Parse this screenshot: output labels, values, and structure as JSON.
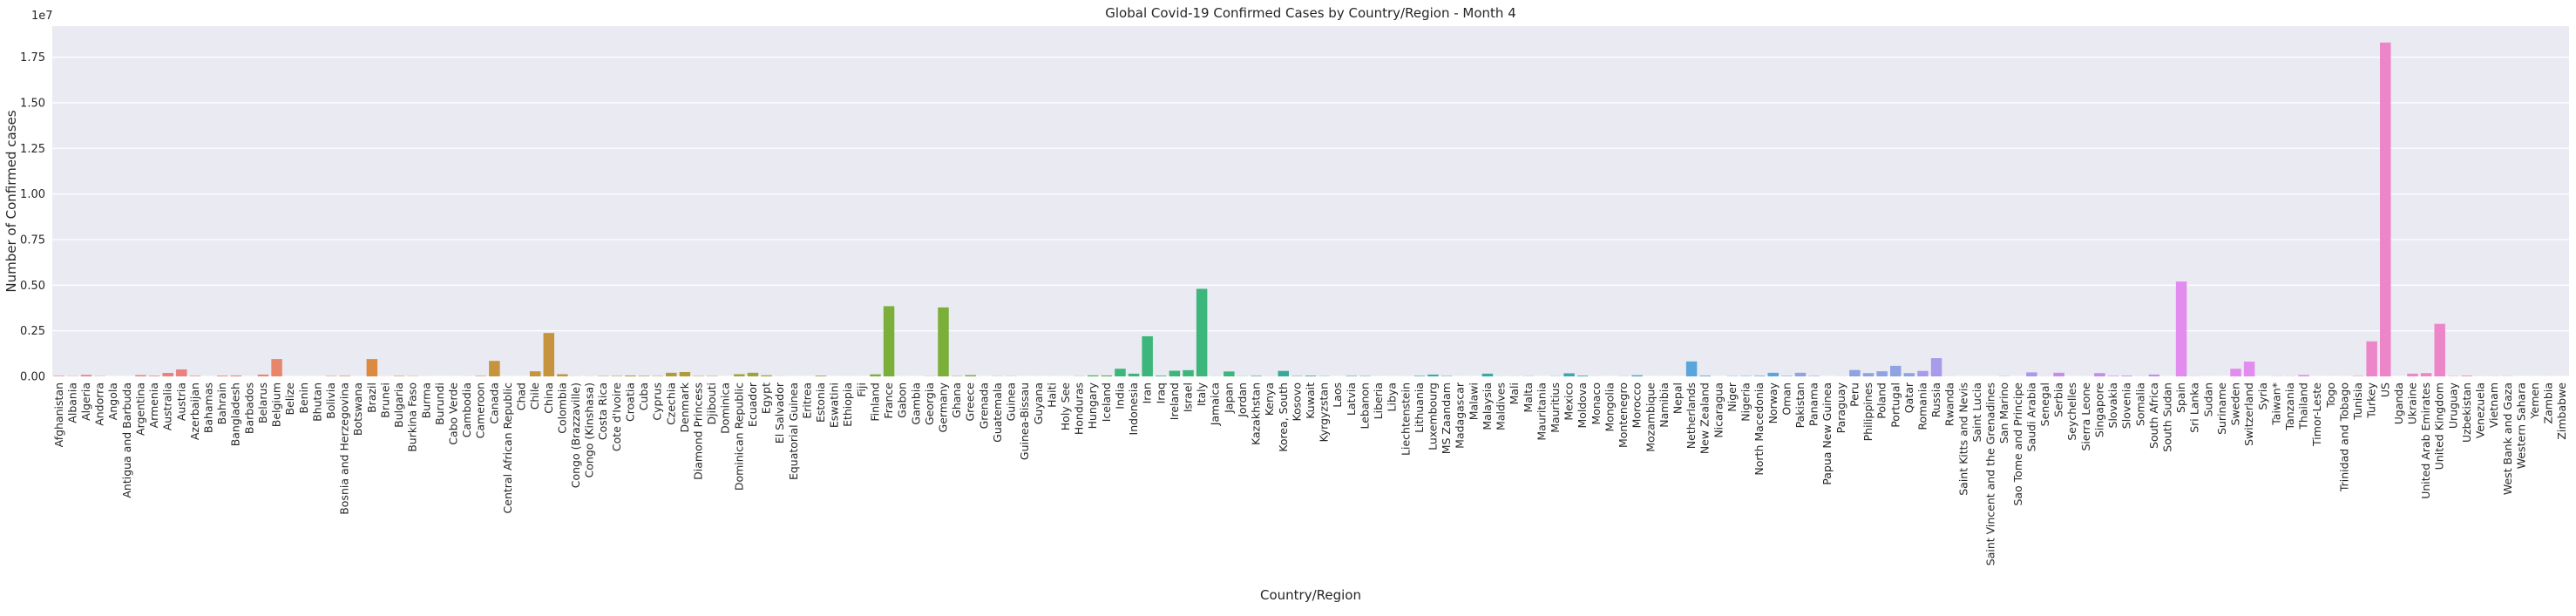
{
  "chart_data": {
    "type": "bar",
    "title": "Global Covid-19 Confirmed Cases by Country/Region - Month 4",
    "xlabel": "Country/Region",
    "ylabel": "Number of Confirmed cases",
    "y_offset_label": "1e7",
    "ylim": [
      0,
      19200000
    ],
    "yticks": [
      0,
      2500000,
      5000000,
      7500000,
      10000000,
      12500000,
      15000000,
      17500000
    ],
    "ytick_labels": [
      "0.00",
      "0.25",
      "0.50",
      "0.75",
      "1.00",
      "1.25",
      "1.50",
      "1.75"
    ],
    "grid": true,
    "legend": "none",
    "palette": [
      "#e8817f",
      "#e7866a",
      "#dc8a40",
      "#c6943d",
      "#b29b3a",
      "#9fa338",
      "#7cae3a",
      "#3fb54b",
      "#3db67c",
      "#3aaa98",
      "#38a9a7",
      "#3aa6b8",
      "#5aa5dc",
      "#8fa3e3",
      "#a89bea",
      "#c58cee",
      "#e18cee",
      "#ec86c9",
      "#ec8ab4"
    ],
    "categories": [
      "Afghanistan",
      "Albania",
      "Algeria",
      "Andorra",
      "Angola",
      "Antigua and Barbuda",
      "Argentina",
      "Armenia",
      "Australia",
      "Austria",
      "Azerbaijan",
      "Bahamas",
      "Bahrain",
      "Bangladesh",
      "Barbados",
      "Belarus",
      "Belgium",
      "Belize",
      "Benin",
      "Bhutan",
      "Bolivia",
      "Bosnia and Herzegovina",
      "Botswana",
      "Brazil",
      "Brunei",
      "Bulgaria",
      "Burkina Faso",
      "Burma",
      "Burundi",
      "Cabo Verde",
      "Cambodia",
      "Cameroon",
      "Canada",
      "Central African Republic",
      "Chad",
      "Chile",
      "China",
      "Colombia",
      "Congo (Brazzaville)",
      "Congo (Kinshasa)",
      "Costa Rica",
      "Cote d'Ivoire",
      "Croatia",
      "Cuba",
      "Cyprus",
      "Czechia",
      "Denmark",
      "Diamond Princess",
      "Djibouti",
      "Dominica",
      "Dominican Republic",
      "Ecuador",
      "Egypt",
      "El Salvador",
      "Equatorial Guinea",
      "Eritrea",
      "Estonia",
      "Eswatini",
      "Ethiopia",
      "Fiji",
      "Finland",
      "France",
      "Gabon",
      "Gambia",
      "Georgia",
      "Germany",
      "Ghana",
      "Greece",
      "Grenada",
      "Guatemala",
      "Guinea",
      "Guinea-Bissau",
      "Guyana",
      "Haiti",
      "Holy See",
      "Honduras",
      "Hungary",
      "Iceland",
      "India",
      "Indonesia",
      "Iran",
      "Iraq",
      "Ireland",
      "Israel",
      "Italy",
      "Jamaica",
      "Japan",
      "Jordan",
      "Kazakhstan",
      "Kenya",
      "Korea, South",
      "Kosovo",
      "Kuwait",
      "Kyrgyzstan",
      "Laos",
      "Latvia",
      "Lebanon",
      "Liberia",
      "Libya",
      "Liechtenstein",
      "Lithuania",
      "Luxembourg",
      "MS Zaandam",
      "Madagascar",
      "Malawi",
      "Malaysia",
      "Maldives",
      "Mali",
      "Malta",
      "Mauritania",
      "Mauritius",
      "Mexico",
      "Moldova",
      "Monaco",
      "Mongolia",
      "Montenegro",
      "Morocco",
      "Mozambique",
      "Namibia",
      "Nepal",
      "Netherlands",
      "New Zealand",
      "Nicaragua",
      "Niger",
      "Nigeria",
      "North Macedonia",
      "Norway",
      "Oman",
      "Pakistan",
      "Panama",
      "Papua New Guinea",
      "Paraguay",
      "Peru",
      "Philippines",
      "Poland",
      "Portugal",
      "Qatar",
      "Romania",
      "Russia",
      "Rwanda",
      "Saint Kitts and Nevis",
      "Saint Lucia",
      "Saint Vincent and the Grenadines",
      "San Marino",
      "Sao Tome and Principe",
      "Saudi Arabia",
      "Senegal",
      "Serbia",
      "Seychelles",
      "Sierra Leone",
      "Singapore",
      "Slovakia",
      "Slovenia",
      "Somalia",
      "South Africa",
      "South Sudan",
      "Spain",
      "Sri Lanka",
      "Sudan",
      "Suriname",
      "Sweden",
      "Switzerland",
      "Syria",
      "Taiwan*",
      "Tanzania",
      "Thailand",
      "Timor-Leste",
      "Togo",
      "Trinidad and Tobago",
      "Tunisia",
      "Turkey",
      "US",
      "Uganda",
      "Ukraine",
      "United Arab Emirates",
      "United Kingdom",
      "Uruguay",
      "Uzbekistan",
      "Venezuela",
      "Vietnam",
      "West Bank and Gaza",
      "Western Sahara",
      "Yemen",
      "Zambia",
      "Zimbabwe"
    ],
    "values": [
      30000,
      15000,
      80000,
      15000,
      500,
      500,
      70000,
      35000,
      190000,
      380000,
      30000,
      1000,
      40000,
      50000,
      1500,
      100000,
      950000,
      200,
      1500,
      200,
      20000,
      30000,
      500,
      950000,
      4000,
      25000,
      15000,
      3000,
      500,
      1500,
      3500,
      25000,
      850000,
      1000,
      1500,
      280000,
      2380000,
      120000,
      5000,
      6000,
      20000,
      25000,
      50000,
      30000,
      20000,
      200000,
      240000,
      21000,
      20000,
      500,
      120000,
      200000,
      60000,
      5000,
      500,
      1000,
      40000,
      1000,
      2500,
      500,
      110000,
      3850000,
      2000,
      300,
      10000,
      3780000,
      20000,
      70000,
      500,
      10000,
      10000,
      1000,
      1500,
      2000,
      300,
      10000,
      55000,
      50000,
      420000,
      150000,
      2200000,
      40000,
      310000,
      340000,
      4800000,
      6000,
      270000,
      10000,
      30000,
      6000,
      300000,
      20000,
      40000,
      15000,
      500,
      25000,
      20000,
      2500,
      1500,
      2500,
      30000,
      100000,
      20000,
      2000,
      500,
      150000,
      3000,
      5000,
      10000,
      500,
      10000,
      170000,
      40000,
      3000,
      500,
      8000,
      60000,
      1000,
      300,
      1000,
      820000,
      40000,
      300,
      15000,
      20000,
      30000,
      200000,
      30000,
      200000,
      25000,
      300,
      6000,
      350000,
      180000,
      280000,
      580000,
      180000,
      300000,
      1000000,
      5000,
      300,
      500,
      300,
      15000,
      300,
      220000,
      7000,
      200000,
      300,
      3000,
      180000,
      30000,
      40000,
      5000,
      100000,
      300,
      5200000,
      10000,
      3000,
      500,
      420000,
      810000,
      1000,
      10000,
      10000,
      80000,
      500,
      2000,
      3000,
      20000,
      1920000,
      18300000,
      2000,
      150000,
      180000,
      2880000,
      15000,
      40000,
      5000,
      8000,
      10000,
      100,
      100,
      2000,
      500
    ]
  }
}
